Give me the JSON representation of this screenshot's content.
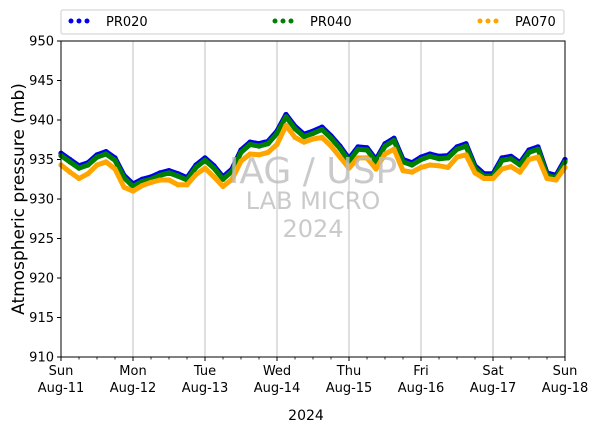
{
  "chart_data": {
    "type": "scatter",
    "xlabel": "2024",
    "ylabel": "Atmospheric pressure (mb)",
    "ylim": [
      910,
      950
    ],
    "xlim": [
      "2024-08-11T00:00",
      "2024-08-18T00:00"
    ],
    "yticks": [
      910,
      915,
      920,
      925,
      930,
      935,
      940,
      945,
      950
    ],
    "xticks": [
      {
        "day": "Sun",
        "date": "Aug-11"
      },
      {
        "day": "Mon",
        "date": "Aug-12"
      },
      {
        "day": "Tue",
        "date": "Aug-13"
      },
      {
        "day": "Wed",
        "date": "Aug-14"
      },
      {
        "day": "Thu",
        "date": "Aug-15"
      },
      {
        "day": "Fri",
        "date": "Aug-16"
      },
      {
        "day": "Sat",
        "date": "Aug-17"
      },
      {
        "day": "Sun",
        "date": "Aug-18"
      }
    ],
    "grid": "vertical",
    "legend_position": "top",
    "x": [
      "2024-08-11T00:00",
      "2024-08-11T03:00",
      "2024-08-11T06:00",
      "2024-08-11T09:00",
      "2024-08-11T12:00",
      "2024-08-11T15:00",
      "2024-08-11T18:00",
      "2024-08-11T21:00",
      "2024-08-12T00:00",
      "2024-08-12T03:00",
      "2024-08-12T06:00",
      "2024-08-12T09:00",
      "2024-08-12T12:00",
      "2024-08-12T15:00",
      "2024-08-12T18:00",
      "2024-08-12T21:00",
      "2024-08-13T00:00",
      "2024-08-13T03:00",
      "2024-08-13T06:00",
      "2024-08-13T09:00",
      "2024-08-13T12:00",
      "2024-08-13T15:00",
      "2024-08-13T18:00",
      "2024-08-13T21:00",
      "2024-08-14T00:00",
      "2024-08-14T03:00",
      "2024-08-14T06:00",
      "2024-08-14T09:00",
      "2024-08-14T12:00",
      "2024-08-14T15:00",
      "2024-08-14T18:00",
      "2024-08-14T21:00",
      "2024-08-15T00:00",
      "2024-08-15T03:00",
      "2024-08-15T06:00",
      "2024-08-15T09:00",
      "2024-08-15T12:00",
      "2024-08-15T15:00",
      "2024-08-15T18:00",
      "2024-08-15T21:00",
      "2024-08-16T00:00",
      "2024-08-16T03:00",
      "2024-08-16T06:00",
      "2024-08-16T09:00",
      "2024-08-16T12:00",
      "2024-08-16T15:00",
      "2024-08-16T18:00",
      "2024-08-16T21:00",
      "2024-08-17T00:00",
      "2024-08-17T03:00",
      "2024-08-17T06:00",
      "2024-08-17T09:00",
      "2024-08-17T12:00",
      "2024-08-17T15:00",
      "2024-08-17T18:00",
      "2024-08-17T21:00",
      "2024-08-18T00:00"
    ],
    "series": [
      {
        "name": "PR020",
        "color": "#0000ee",
        "values": [
          935.8,
          935.0,
          934.2,
          934.6,
          935.6,
          936.0,
          935.2,
          933.0,
          931.9,
          932.5,
          932.8,
          933.3,
          933.6,
          933.2,
          932.7,
          934.3,
          935.2,
          934.2,
          932.8,
          933.8,
          936.2,
          937.2,
          937.0,
          937.3,
          938.6,
          940.7,
          939.2,
          938.2,
          938.6,
          939.1,
          938.0,
          936.7,
          935.1,
          936.6,
          936.5,
          935.0,
          937.0,
          937.7,
          935.0,
          934.6,
          935.3,
          935.7,
          935.4,
          935.5,
          936.6,
          937.0,
          934.2,
          933.2,
          933.2,
          935.2,
          935.4,
          934.6,
          936.2,
          936.6,
          933.3,
          933.0,
          935.0
        ]
      },
      {
        "name": "PR040",
        "color": "#008000",
        "values": [
          935.5,
          934.7,
          933.9,
          934.3,
          935.3,
          935.7,
          934.9,
          932.7,
          931.6,
          932.2,
          932.5,
          933.0,
          933.3,
          932.9,
          932.4,
          934.0,
          934.9,
          933.9,
          932.5,
          933.5,
          935.9,
          936.9,
          936.7,
          937.0,
          938.3,
          940.4,
          938.9,
          937.9,
          938.3,
          938.8,
          937.7,
          936.4,
          934.8,
          936.3,
          936.2,
          934.7,
          936.7,
          937.4,
          934.7,
          934.3,
          935.0,
          935.4,
          935.1,
          935.2,
          936.3,
          936.7,
          933.9,
          932.9,
          932.9,
          934.9,
          935.1,
          934.3,
          935.9,
          936.3,
          933.0,
          932.7,
          934.7
        ]
      },
      {
        "name": "PA070",
        "color": "#ffa500",
        "values": [
          934.3,
          933.4,
          932.6,
          933.2,
          934.3,
          934.7,
          933.8,
          931.5,
          931.0,
          931.7,
          932.1,
          932.4,
          932.4,
          931.8,
          931.8,
          933.1,
          933.9,
          932.8,
          931.6,
          932.5,
          934.8,
          935.7,
          935.6,
          935.9,
          936.9,
          939.3,
          937.8,
          937.2,
          937.6,
          937.8,
          936.7,
          935.3,
          933.9,
          935.2,
          935.2,
          933.8,
          935.7,
          936.3,
          933.6,
          933.4,
          934.0,
          934.3,
          934.2,
          934.0,
          935.3,
          935.6,
          933.3,
          932.6,
          932.6,
          933.8,
          934.1,
          933.4,
          935.0,
          935.3,
          932.6,
          932.4,
          934.0
        ]
      }
    ],
    "watermark": [
      "IAG / USP",
      "LAB MICRO",
      "2024"
    ]
  }
}
